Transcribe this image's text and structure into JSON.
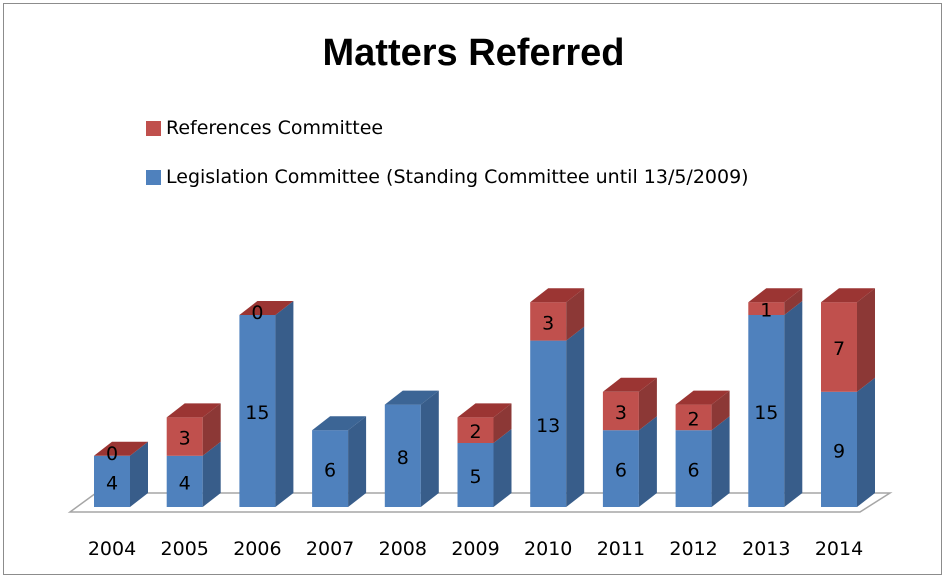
{
  "chart_data": {
    "type": "bar",
    "stacked": true,
    "three_d": true,
    "title": "Matters Referred",
    "categories": [
      "2004",
      "2005",
      "2006",
      "2007",
      "2008",
      "2009",
      "2010",
      "2011",
      "2012",
      "2013",
      "2014"
    ],
    "series": [
      {
        "name": "Legislation Committee (Standing Committee until 13/5/2009)",
        "values": [
          4,
          4,
          15,
          6,
          8,
          5,
          13,
          6,
          6,
          15,
          9
        ],
        "labels": [
          "4",
          "4",
          "15",
          "6",
          "8",
          "5",
          "13",
          "6",
          "6",
          "15",
          "9"
        ],
        "color": "#4f81bd",
        "top_color": "#3c6595",
        "side_color": "#385d8a"
      },
      {
        "name": "References Committee",
        "values": [
          0,
          3,
          0,
          null,
          null,
          2,
          3,
          3,
          2,
          1,
          7
        ],
        "labels": [
          "0",
          "3",
          "0",
          "",
          "",
          "2",
          "3",
          "3",
          "2",
          "1",
          "7"
        ],
        "color": "#c0504d",
        "top_color": "#9b3533",
        "side_color": "#8c3836"
      }
    ],
    "legend_position": "top-left",
    "legend_order": [
      "References Committee",
      "Legislation Committee (Standing Committee until 13/5/2009)"
    ],
    "grid": false,
    "ylim": [
      0,
      16
    ]
  }
}
